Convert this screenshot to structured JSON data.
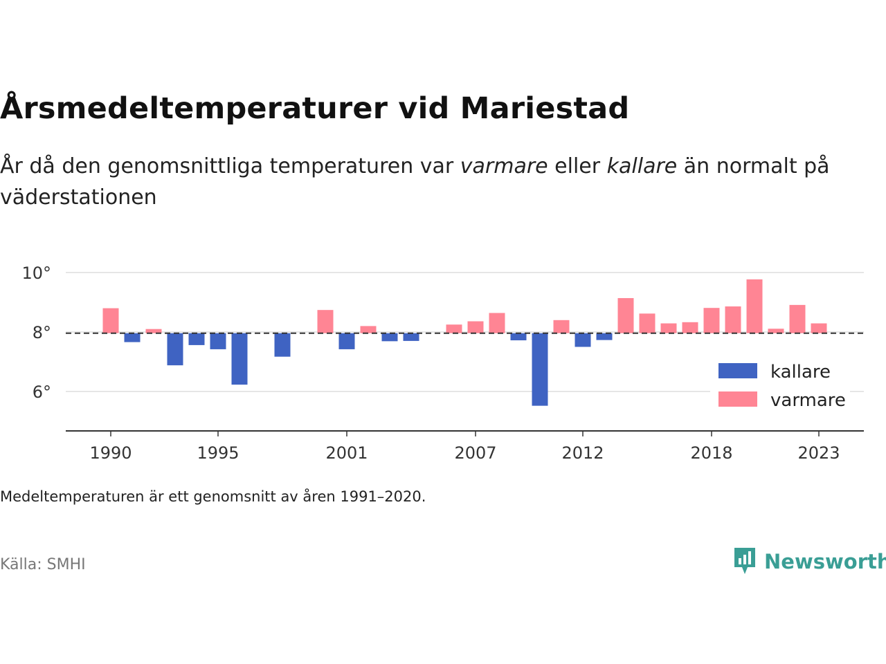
{
  "title": "Årsmedeltemperaturer vid Mariestad",
  "subtitle": {
    "part1": "År då den genomsnittliga temperaturen var ",
    "warmer": "varmare",
    "part2": " eller ",
    "colder": "kallare",
    "part3": " än normalt på väderstationen"
  },
  "note": "Medeltemperaturen är ett genomsnitt av åren 1991–2020.",
  "source": "Källa: SMHI",
  "brand": "Newsworthy",
  "colors": {
    "cold": "#3f63c2",
    "warm": "#ff8594",
    "brand": "#3a9e95"
  },
  "chart_data": {
    "type": "bar",
    "baseline": 7.96,
    "ylim": [
      4.6,
      10.3
    ],
    "yticks": [
      6,
      8,
      10
    ],
    "ytick_labels": [
      "6°",
      "8°",
      "10°"
    ],
    "xticks": [
      1990,
      1995,
      2001,
      2007,
      2012,
      2018,
      2023
    ],
    "legend": {
      "position": "bottom-right",
      "entries": [
        {
          "key": "cold",
          "label": "kallare"
        },
        {
          "key": "warm",
          "label": "varmare"
        }
      ]
    },
    "categories": [
      1990,
      1991,
      1992,
      1993,
      1994,
      1995,
      1996,
      1997,
      1998,
      1999,
      2000,
      2001,
      2002,
      2003,
      2004,
      2005,
      2006,
      2007,
      2008,
      2009,
      2010,
      2011,
      2012,
      2013,
      2014,
      2015,
      2016,
      2017,
      2018,
      2019,
      2020,
      2021,
      2022,
      2023
    ],
    "values": [
      8.8,
      7.66,
      8.1,
      6.88,
      7.56,
      7.42,
      6.23,
      null,
      7.17,
      null,
      8.74,
      7.42,
      8.2,
      7.69,
      7.7,
      null,
      8.25,
      8.36,
      8.64,
      7.72,
      5.52,
      8.4,
      7.5,
      7.73,
      9.14,
      8.62,
      8.29,
      8.33,
      8.81,
      8.86,
      9.77,
      8.11,
      8.91,
      8.29
    ]
  }
}
